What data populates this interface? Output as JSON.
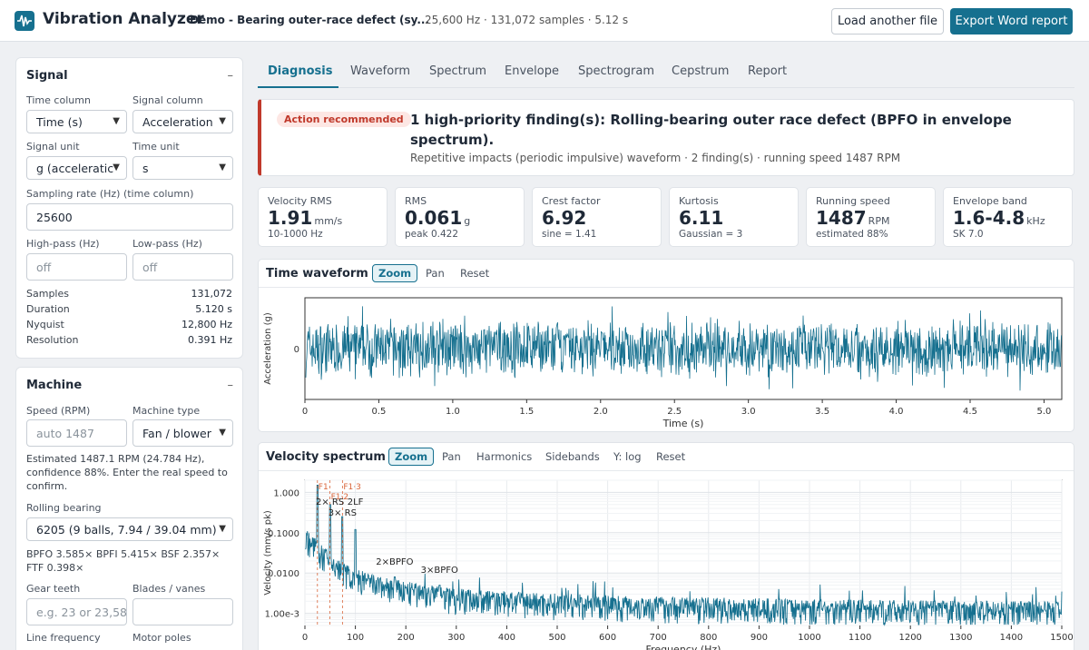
{
  "header": {
    "app_title": "Vibration Analyzer",
    "file_name": "Demo - Bearing outer-race defect (sy...",
    "file_meta": "25,600 Hz · 131,072 samples · 5.12 s",
    "load_button": "Load another file",
    "export_button": "Export Word report",
    "accent": "#16708f"
  },
  "signal": {
    "title": "Signal",
    "collapse": "–",
    "time_column_label": "Time column",
    "time_column_value": "Time (s)",
    "signal_column_label": "Signal column",
    "signal_column_value": "Acceleration",
    "signal_unit_label": "Signal unit",
    "signal_unit_value": "g (acceleratic",
    "time_unit_label": "Time unit",
    "time_unit_value": "s",
    "sampling_label": "Sampling rate (Hz) (time column)",
    "sampling_value": "25600",
    "highpass_label": "High-pass (Hz)",
    "highpass_placeholder": "off",
    "lowpass_label": "Low-pass (Hz)",
    "lowpass_placeholder": "off",
    "stats": [
      {
        "key": "Samples",
        "value": "131,072"
      },
      {
        "key": "Duration",
        "value": "5.120 s"
      },
      {
        "key": "Nyquist",
        "value": "12,800 Hz"
      },
      {
        "key": "Resolution",
        "value": "0.391 Hz"
      }
    ]
  },
  "machine": {
    "title": "Machine",
    "collapse": "–",
    "speed_label": "Speed (RPM)",
    "speed_placeholder": "auto 1487",
    "type_label": "Machine type",
    "type_value": "Fan / blower",
    "speed_note": "Estimated 1487.1 RPM (24.784 Hz), confidence 88%. Enter the real speed to confirm.",
    "bearing_label": "Rolling bearing",
    "bearing_value": "6205 (9 balls, 7.94 / 39.04 mm)",
    "bearing_note": "BPFO 3.585× BPFI 5.415× BSF 2.357× FTF 0.398×",
    "gear_label": "Gear teeth",
    "gear_placeholder": "e.g. 23 or 23,58",
    "blades_label": "Blades / vanes",
    "line_label": "Line frequency",
    "poles_label": "Motor poles"
  },
  "tabs": [
    "Diagnosis",
    "Waveform",
    "Spectrum",
    "Envelope",
    "Spectrogram",
    "Cepstrum",
    "Report"
  ],
  "alert": {
    "badge": "Action recommended",
    "title": "1 high-priority finding(s): Rolling-bearing outer race defect (BPFO in envelope spectrum).",
    "subtitle": "Repetitive impacts (periodic impulsive) waveform · 2 finding(s) · running speed 1487 RPM",
    "color": "#c0392b"
  },
  "kpis": [
    {
      "label": "Velocity RMS",
      "value": "1.91",
      "unit": "mm/s",
      "sub": "10-1000 Hz"
    },
    {
      "label": "RMS",
      "value": "0.061",
      "unit": "g",
      "sub": "peak 0.422"
    },
    {
      "label": "Crest factor",
      "value": "6.92",
      "unit": "",
      "sub": "sine = 1.41"
    },
    {
      "label": "Kurtosis",
      "value": "6.11",
      "unit": "",
      "sub": "Gaussian = 3"
    },
    {
      "label": "Running speed",
      "value": "1487",
      "unit": "RPM",
      "sub": "estimated 88%"
    },
    {
      "label": "Envelope band",
      "value": "1.6-4.8",
      "unit": "kHz",
      "sub": "SK 7.0"
    }
  ],
  "waveform_card": {
    "title": "Time waveform",
    "tools": [
      "Zoom",
      "Pan",
      "Reset"
    ]
  },
  "spectrum_card": {
    "title": "Velocity spectrum",
    "tools": [
      "Zoom",
      "Pan",
      "Harmonics",
      "Sidebands",
      "Y: log",
      "Reset"
    ]
  },
  "chart_data": [
    {
      "type": "line",
      "title": "",
      "xlabel": "Time (s)",
      "ylabel": "Acceleration (g)",
      "xlim": [
        0,
        5.12
      ],
      "x_ticks": [
        "0",
        "0.5",
        "1.0",
        "1.5",
        "2.0",
        "2.5",
        "3.0",
        "3.5",
        "4.0",
        "4.5",
        "5.0"
      ],
      "y_ticks": [
        "0"
      ],
      "grid": false,
      "series": [
        {
          "color": "#16708f",
          "amplitude_envelope": [
            [
              0,
              0.14
            ],
            [
              5.12,
              0.14
            ]
          ]
        }
      ]
    },
    {
      "type": "line",
      "title": "",
      "xlabel": "Frequency (Hz)",
      "ylabel": "Velocity (mm/s pk)",
      "y_scale": "log",
      "xlim": [
        0,
        1500
      ],
      "ylim": [
        0.0005,
        2
      ],
      "x_ticks": [
        "0",
        "100",
        "200",
        "300",
        "400",
        "500",
        "600",
        "700",
        "800",
        "900",
        "1000",
        "1100",
        "1200",
        "1300",
        "1400",
        "1500"
      ],
      "y_ticks": [
        "1.000",
        "0.1000",
        "0.0100",
        "1.00e-3"
      ],
      "grid": true,
      "series": [
        {
          "color": "#16708f",
          "peaks": [
            {
              "x": 24.8,
              "y": 1.5
            },
            {
              "x": 49.6,
              "y": 0.5
            },
            {
              "x": 74.4,
              "y": 0.25
            },
            {
              "x": 100,
              "y": 0.12
            },
            {
              "x": 177.8,
              "y": 0.008
            },
            {
              "x": 266.7,
              "y": 0.005
            }
          ]
        }
      ],
      "markers": [
        {
          "label": "F1",
          "x": 24.8
        },
        {
          "label": "F1·2",
          "x": 49.6
        },
        {
          "label": "F1·3",
          "x": 74.4
        }
      ],
      "annotations": [
        {
          "label": "2× RS",
          "x": 49.6
        },
        {
          "label": "3× RS",
          "x": 74.4
        },
        {
          "label": "2LF",
          "x": 100
        },
        {
          "label": "2×BPFO",
          "x": 177.8
        },
        {
          "label": "3×BPFO",
          "x": 266.7
        }
      ]
    }
  ]
}
